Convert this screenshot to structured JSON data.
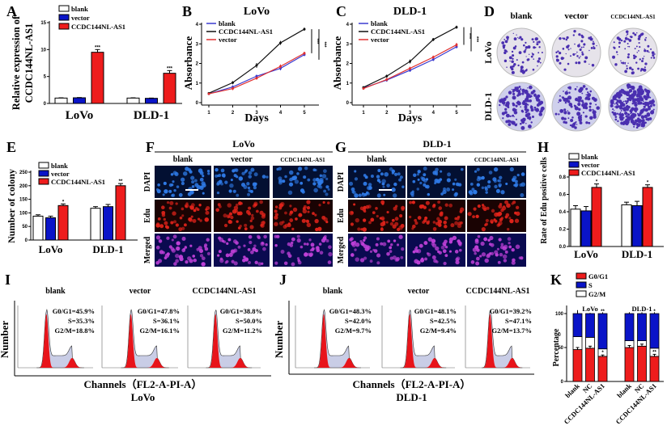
{
  "panels": [
    "A",
    "B",
    "C",
    "D",
    "E",
    "F",
    "G",
    "H",
    "I",
    "J",
    "K"
  ],
  "chart_data": [
    {
      "panel": "A",
      "type": "bar",
      "ylabel": [
        "Relative expression of",
        "CCDC144NL-AS1"
      ],
      "categories": [
        "LoVo",
        "DLD-1"
      ],
      "ylim": [
        0,
        15
      ],
      "yticks": [
        0,
        5,
        10,
        15
      ],
      "series": [
        {
          "name": "blank",
          "values": [
            1.0,
            1.0
          ],
          "errors": [
            0.05,
            0.05
          ],
          "color": "#ffffff"
        },
        {
          "name": "vector",
          "values": [
            1.05,
            0.95
          ],
          "errors": [
            0.05,
            0.05
          ],
          "color": "#0a14c8"
        },
        {
          "name": "CCDC144NL-AS1",
          "values": [
            9.5,
            5.6
          ],
          "errors": [
            0.5,
            0.5
          ],
          "color": "#ee1c1c"
        }
      ],
      "annotations": [
        "***",
        "***"
      ]
    },
    {
      "panel": "B",
      "type": "line",
      "title": "LoVo",
      "xlabel": "Days",
      "ylabel": "Absorbance",
      "x": [
        1,
        2,
        3,
        4,
        5
      ],
      "ylim": [
        0,
        4
      ],
      "yticks": [
        0,
        1,
        2,
        3,
        4
      ],
      "series": [
        {
          "name": "blank",
          "values": [
            0.45,
            0.8,
            1.35,
            1.75,
            2.45
          ],
          "errors": [
            0.05,
            0.08,
            0.08,
            0.1,
            0.08
          ],
          "color": "#3a3ad0"
        },
        {
          "name": "CCDC144NL-AS1",
          "values": [
            0.48,
            1.02,
            1.9,
            3.05,
            3.75
          ],
          "errors": [
            0.05,
            0.08,
            0.12,
            0.1,
            0.08
          ],
          "color": "#111111"
        },
        {
          "name": "vector",
          "values": [
            0.45,
            0.72,
            1.25,
            1.85,
            2.52
          ],
          "errors": [
            0.05,
            0.08,
            0.08,
            0.1,
            0.08
          ],
          "color": "#e03030"
        }
      ],
      "significance": [
        "***",
        "***"
      ]
    },
    {
      "panel": "C",
      "type": "line",
      "title": "DLD-1",
      "xlabel": "Days",
      "ylabel": "Absorbance",
      "x": [
        1,
        2,
        3,
        4,
        5
      ],
      "ylim": [
        0,
        4
      ],
      "yticks": [
        0,
        1,
        2,
        3,
        4
      ],
      "series": [
        {
          "name": "blank",
          "values": [
            0.75,
            1.15,
            1.65,
            2.2,
            2.85
          ],
          "errors": [
            0.05,
            0.08,
            0.08,
            0.08,
            0.08
          ],
          "color": "#3a3ad0"
        },
        {
          "name": "CCDC144NL-AS1",
          "values": [
            0.78,
            1.35,
            2.1,
            3.22,
            3.85
          ],
          "errors": [
            0.05,
            0.08,
            0.1,
            0.08,
            0.08
          ],
          "color": "#111111"
        },
        {
          "name": "vector",
          "values": [
            0.72,
            1.18,
            1.75,
            2.32,
            2.95
          ],
          "errors": [
            0.05,
            0.08,
            0.08,
            0.08,
            0.1
          ],
          "color": "#e03030"
        }
      ],
      "significance": [
        "***",
        "***"
      ]
    },
    {
      "panel": "E",
      "type": "bar",
      "ylabel": [
        "Number of colony"
      ],
      "categories": [
        "LoVo",
        "DLD-1"
      ],
      "ylim": [
        0,
        250
      ],
      "yticks": [
        0,
        50,
        100,
        150,
        200,
        250
      ],
      "series": [
        {
          "name": "blank",
          "values": [
            88,
            117
          ],
          "errors": [
            5,
            6
          ],
          "color": "#ffffff"
        },
        {
          "name": "vector",
          "values": [
            82,
            123
          ],
          "errors": [
            6,
            8
          ],
          "color": "#0a14c8"
        },
        {
          "name": "CCDC144NL-AS1",
          "values": [
            127,
            200
          ],
          "errors": [
            6,
            8
          ],
          "color": "#ee1c1c"
        }
      ],
      "annotations": [
        "*",
        "**"
      ]
    },
    {
      "panel": "H",
      "type": "bar",
      "ylabel": [
        "Rate of Edu positive cells"
      ],
      "categories": [
        "LoVo",
        "DLD-1"
      ],
      "ylim": [
        0,
        0.8
      ],
      "yticks": [
        "0.0",
        "0.2",
        "0.4",
        "0.6",
        "0.8"
      ],
      "series": [
        {
          "name": "blank",
          "values": [
            0.43,
            0.48
          ],
          "errors": [
            0.04,
            0.03
          ],
          "color": "#ffffff"
        },
        {
          "name": "vector",
          "values": [
            0.41,
            0.47
          ],
          "errors": [
            0.05,
            0.05
          ],
          "color": "#0a14c8"
        },
        {
          "name": "CCDC144NL-AS1",
          "values": [
            0.68,
            0.68
          ],
          "errors": [
            0.04,
            0.03
          ],
          "color": "#ee1c1c"
        }
      ],
      "annotations": [
        "*",
        "*"
      ]
    },
    {
      "panel": "K",
      "type": "stacked-bar",
      "ylabel": [
        "Percentage"
      ],
      "groups": [
        "LoVo",
        "DLD-1"
      ],
      "categories": [
        "blank",
        "NC",
        "CCDC144NL-AS1",
        "blank",
        "NC",
        "CCDC144NL-AS1"
      ],
      "ylim": [
        0,
        100
      ],
      "yticks": [
        0,
        50,
        100
      ],
      "series": [
        {
          "name": "G0/G1",
          "values": [
            47,
            49,
            37,
            50,
            52,
            37
          ],
          "errors": [
            3,
            3,
            2,
            3,
            3,
            3
          ],
          "color": "#ee1c1c"
        },
        {
          "name": "S",
          "values": [
            34,
            35,
            52,
            40,
            40,
            51
          ],
          "errors": [
            5,
            1,
            2,
            2,
            2,
            2
          ],
          "color": "#0a14c8"
        },
        {
          "name": "G2/M",
          "values": [
            19,
            16,
            11,
            10,
            8,
            12
          ],
          "errors": [
            0,
            0,
            0,
            0,
            0,
            0
          ],
          "color": "#ffffff"
        }
      ],
      "annotations_top": [
        "",
        "",
        "**",
        "",
        "",
        "*"
      ],
      "annotations_g0g1": [
        "",
        "",
        "*",
        "",
        "",
        "**"
      ]
    }
  ],
  "colony_assay": {
    "col_headers": [
      "blank",
      "vector",
      "CCDC144NL-AS1"
    ],
    "row_labels": [
      "LoVo",
      "DLD-1"
    ]
  },
  "edu_assay": [
    {
      "title": "LoVo",
      "col_headers": [
        "blank",
        "vector",
        "CCDC144NL-AS1"
      ],
      "row_labels": [
        "DAPI",
        "Edu",
        "Merged"
      ]
    },
    {
      "title": "DLD-1",
      "col_headers": [
        "blank",
        "vector",
        "CCDC144NL-AS1"
      ],
      "row_labels": [
        "DAPI",
        "Edu",
        "Merged"
      ]
    }
  ],
  "cell_cycle": [
    {
      "cell_line": "LoVo",
      "ylabel": "Number",
      "xlabel": "Channels（FL2-A-PI-A）",
      "conditions": [
        {
          "title": "blank",
          "stats": [
            "G0/G1=45.9%",
            "S=35.3%",
            "G2/M=18.8%"
          ]
        },
        {
          "title": "vector",
          "stats": [
            "G0/G1=47.8%",
            "S=36.1%",
            "G2/M=16.1%"
          ]
        },
        {
          "title": "CCDC144NL-AS1",
          "stats": [
            "G0/G1=38.8%",
            "S=50.0%",
            "G2/M=11.2%"
          ]
        }
      ]
    },
    {
      "cell_line": "DLD-1",
      "ylabel": "Number",
      "xlabel": "Channels（FL2-A-PI-A）",
      "conditions": [
        {
          "title": "blank",
          "stats": [
            "G0/G1=48.3%",
            "S=42.0%",
            "G2/M=9.7%"
          ]
        },
        {
          "title": "vector",
          "stats": [
            "G0/G1=48.1%",
            "S=42.5%",
            "G2/M=9.4%"
          ]
        },
        {
          "title": "CCDC144NL-AS1",
          "stats": [
            "G0/G1=39.2%",
            "S=47.1%",
            "G2/M=13.7%"
          ]
        }
      ]
    }
  ]
}
